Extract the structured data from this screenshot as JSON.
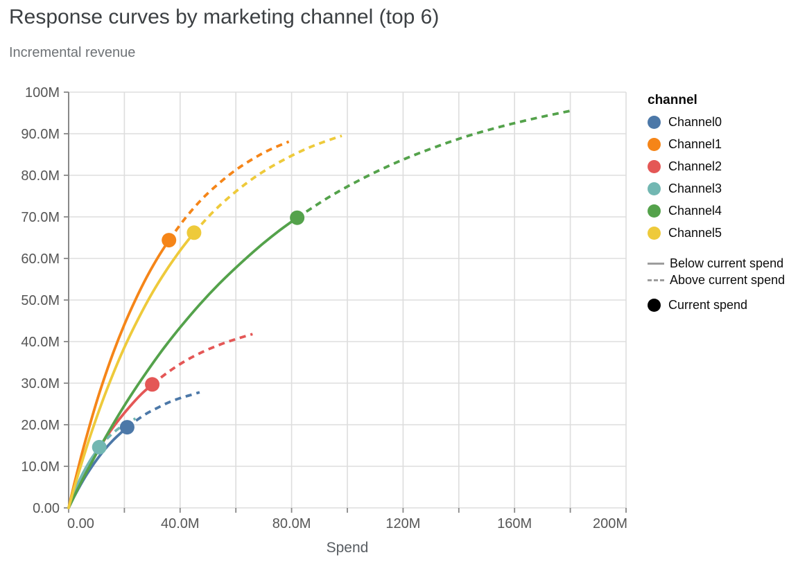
{
  "header": {
    "title": "Response curves by marketing channel (top 6)",
    "subtitle": "Incremental revenue"
  },
  "axes": {
    "x": {
      "title": "Spend",
      "tick_labels": [
        "0.00",
        "40.0M",
        "80.0M",
        "120M",
        "160M",
        "200M"
      ],
      "tick_values": [
        0,
        40,
        80,
        120,
        160,
        200
      ],
      "grid_step": 20,
      "max": 200
    },
    "y": {
      "tick_labels": [
        "0.00",
        "10.0M",
        "20.0M",
        "30.0M",
        "40.0M",
        "50.0M",
        "60.0M",
        "70.0M",
        "80.0M",
        "90.0M",
        "100M"
      ],
      "tick_values": [
        0,
        10,
        20,
        30,
        40,
        50,
        60,
        70,
        80,
        90,
        100
      ],
      "grid_step": 10,
      "max": 100
    }
  },
  "legend": {
    "channel_title": "channel",
    "channels": [
      {
        "label": "Channel0",
        "color": "#4c78a8"
      },
      {
        "label": "Channel1",
        "color": "#f58518"
      },
      {
        "label": "Channel2",
        "color": "#e45756"
      },
      {
        "label": "Channel3",
        "color": "#72b7b2"
      },
      {
        "label": "Channel4",
        "color": "#54a24b"
      },
      {
        "label": "Channel5",
        "color": "#eeca3b"
      }
    ],
    "line_styles": [
      {
        "label": "Below current spend",
        "style": "solid"
      },
      {
        "label": "Above current spend",
        "style": "dashed"
      }
    ],
    "point": {
      "label": "Current spend",
      "color": "#000000"
    }
  },
  "colors": {
    "grid": "#dddddd",
    "axis_domain": "#888888",
    "tick": "#888888",
    "tick_label": "#565656",
    "title": "#3c4043",
    "subtitle": "#6e7276"
  },
  "chart_data": {
    "type": "line",
    "title": "Response curves by marketing channel (top 6)",
    "subtitle": "Incremental revenue",
    "xlabel": "Spend",
    "ylabel": "Incremental revenue",
    "units": "millions",
    "xlim": [
      0,
      200
    ],
    "ylim": [
      0,
      100
    ],
    "grid": true,
    "legend_position": "right",
    "series": [
      {
        "name": "Channel0",
        "color": "#4c78a8",
        "current_spend": {
          "x": 21,
          "y": 19.4
        },
        "below": [
          [
            0,
            0
          ],
          [
            2,
            2.7
          ],
          [
            4,
            5.2
          ],
          [
            6,
            7.5
          ],
          [
            8,
            9.6
          ],
          [
            10,
            11.5
          ],
          [
            13,
            14.1
          ],
          [
            16,
            16.3
          ],
          [
            19,
            18.2
          ],
          [
            21,
            19.4
          ]
        ],
        "above": [
          [
            21,
            19.4
          ],
          [
            24,
            20.9
          ],
          [
            28,
            22.7
          ],
          [
            32,
            24.1
          ],
          [
            36,
            25.4
          ],
          [
            40,
            26.4
          ],
          [
            43,
            27.0
          ],
          [
            47,
            27.8
          ]
        ]
      },
      {
        "name": "Channel1",
        "color": "#f58518",
        "current_spend": {
          "x": 36,
          "y": 64.4
        },
        "below": [
          [
            0,
            0
          ],
          [
            2,
            5.7
          ],
          [
            4,
            11.1
          ],
          [
            6,
            16.1
          ],
          [
            9,
            23.2
          ],
          [
            12,
            29.6
          ],
          [
            16,
            37.3
          ],
          [
            20,
            44.1
          ],
          [
            24,
            50.1
          ],
          [
            28,
            55.5
          ],
          [
            32,
            60.2
          ],
          [
            36,
            64.4
          ]
        ],
        "above": [
          [
            36,
            64.4
          ],
          [
            42,
            69.8
          ],
          [
            48,
            74.4
          ],
          [
            54,
            78.1
          ],
          [
            60,
            81.3
          ],
          [
            66,
            83.9
          ],
          [
            72,
            86.1
          ],
          [
            79,
            88.1
          ]
        ]
      },
      {
        "name": "Channel2",
        "color": "#e45756",
        "current_spend": {
          "x": 30,
          "y": 29.7
        },
        "below": [
          [
            0,
            0
          ],
          [
            2,
            3.0
          ],
          [
            4,
            5.9
          ],
          [
            6,
            8.5
          ],
          [
            9,
            12.2
          ],
          [
            12,
            15.5
          ],
          [
            15,
            18.5
          ],
          [
            18,
            21.2
          ],
          [
            22,
            24.4
          ],
          [
            26,
            27.3
          ],
          [
            30,
            29.7
          ]
        ],
        "above": [
          [
            30,
            29.7
          ],
          [
            36,
            32.8
          ],
          [
            42,
            35.4
          ],
          [
            48,
            37.5
          ],
          [
            54,
            39.2
          ],
          [
            60,
            40.6
          ],
          [
            66,
            41.8
          ]
        ]
      },
      {
        "name": "Channel3",
        "color": "#72b7b2",
        "current_spend": {
          "x": 11,
          "y": 14.6
        },
        "below": [
          [
            0,
            0
          ],
          [
            1.5,
            2.8
          ],
          [
            3,
            5.3
          ],
          [
            4.5,
            7.5
          ],
          [
            6,
            9.4
          ],
          [
            8,
            11.7
          ],
          [
            11,
            14.6
          ]
        ],
        "above": [
          [
            11,
            14.6
          ],
          [
            14,
            16.8
          ],
          [
            17,
            18.6
          ],
          [
            20,
            20.0
          ],
          [
            24,
            21.5
          ]
        ]
      },
      {
        "name": "Channel4",
        "color": "#54a24b",
        "current_spend": {
          "x": 82,
          "y": 69.8
        },
        "below": [
          [
            0,
            0
          ],
          [
            4,
            5.5
          ],
          [
            8,
            10.6
          ],
          [
            12,
            15.5
          ],
          [
            17,
            21.3
          ],
          [
            22,
            26.7
          ],
          [
            28,
            32.7
          ],
          [
            34,
            38.3
          ],
          [
            40,
            43.4
          ],
          [
            47,
            48.9
          ],
          [
            54,
            53.9
          ],
          [
            61,
            58.4
          ],
          [
            68,
            62.6
          ],
          [
            75,
            66.4
          ],
          [
            82,
            69.8
          ]
        ],
        "above": [
          [
            82,
            69.8
          ],
          [
            94,
            75.0
          ],
          [
            106,
            79.4
          ],
          [
            118,
            83.2
          ],
          [
            130,
            86.4
          ],
          [
            142,
            89.2
          ],
          [
            155,
            91.7
          ],
          [
            168,
            93.8
          ],
          [
            180,
            95.5
          ]
        ]
      },
      {
        "name": "Channel5",
        "color": "#eeca3b",
        "current_spend": {
          "x": 45,
          "y": 66.2
        },
        "below": [
          [
            0,
            0
          ],
          [
            2,
            4.8
          ],
          [
            5,
            11.5
          ],
          [
            8,
            17.8
          ],
          [
            12,
            25.4
          ],
          [
            16,
            32.3
          ],
          [
            20,
            38.6
          ],
          [
            25,
            45.5
          ],
          [
            30,
            51.7
          ],
          [
            35,
            57.1
          ],
          [
            40,
            61.9
          ],
          [
            45,
            66.2
          ]
        ],
        "above": [
          [
            45,
            66.2
          ],
          [
            52,
            71.3
          ],
          [
            60,
            76.1
          ],
          [
            68,
            80.1
          ],
          [
            76,
            83.3
          ],
          [
            84,
            86.0
          ],
          [
            91,
            87.9
          ],
          [
            98,
            89.5
          ]
        ]
      }
    ]
  }
}
